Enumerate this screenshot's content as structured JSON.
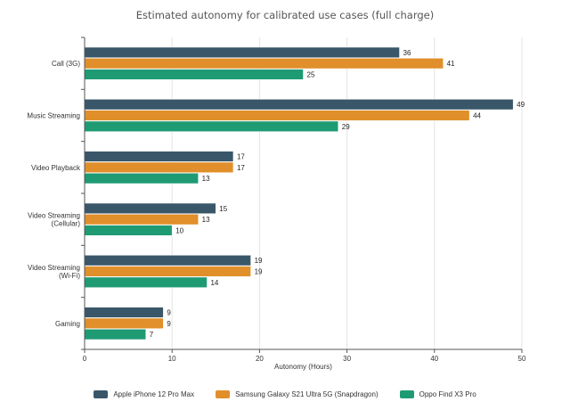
{
  "chart_data": {
    "type": "bar",
    "orientation": "horizontal",
    "title": "Estimated autonomy for calibrated use cases (full charge)",
    "xlabel": "Autonomy (Hours)",
    "ylabel": "",
    "xlim": [
      0,
      50
    ],
    "xticks": [
      0,
      10,
      20,
      30,
      40,
      50
    ],
    "grid": true,
    "legend_position": "bottom",
    "categories": [
      [
        "Call (3G)"
      ],
      [
        "Music Streaming"
      ],
      [
        "Video Playback"
      ],
      [
        "Video Streaming",
        "(Cellular)"
      ],
      [
        "Video Streaming",
        "(Wi-Fi)"
      ],
      [
        "Gaming"
      ]
    ],
    "series": [
      {
        "name": "Apple iPhone 12 Pro Max",
        "color": "#3a5769",
        "values": [
          36,
          49,
          17,
          15,
          19,
          9
        ]
      },
      {
        "name": "Samsung Galaxy S21 Ultra 5G (Snapdragon)",
        "color": "#e08f2a",
        "values": [
          41,
          44,
          17,
          13,
          19,
          9
        ]
      },
      {
        "name": "Oppo Find X3 Pro",
        "color": "#1f9b74",
        "values": [
          25,
          29,
          13,
          10,
          14,
          7
        ]
      }
    ]
  }
}
